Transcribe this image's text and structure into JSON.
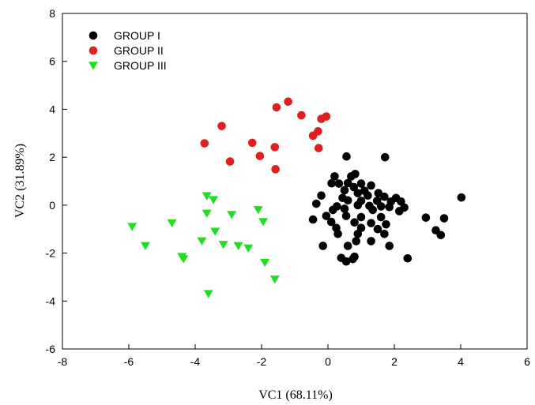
{
  "chart_data": {
    "type": "scatter",
    "xlabel": "VC1 (68.11%)",
    "ylabel": "VC2 (31.89%)",
    "xlim": [
      -8,
      6
    ],
    "ylim": [
      -6,
      8
    ],
    "xticks": [
      "-8",
      "-6",
      "-4",
      "-2",
      "0",
      "2",
      "4",
      "6"
    ],
    "yticks": [
      "-6",
      "-4",
      "-2",
      "0",
      "2",
      "4",
      "6",
      "8"
    ],
    "grid": false,
    "legend": "top-left",
    "series": [
      {
        "name": "GROUP I",
        "marker": "circle",
        "color": "#000000",
        "points": [
          [
            0.56,
            2.03
          ],
          [
            1.72,
            2.0
          ],
          [
            0.2,
            1.2
          ],
          [
            0.82,
            1.3
          ],
          [
            0.7,
            1.2
          ],
          [
            0.11,
            0.91
          ],
          [
            0.33,
            0.9
          ],
          [
            0.6,
            0.92
          ],
          [
            1.0,
            0.9
          ],
          [
            1.3,
            0.82
          ],
          [
            0.78,
            0.75
          ],
          [
            0.5,
            0.62
          ],
          [
            1.1,
            0.6
          ],
          [
            1.52,
            0.5
          ],
          [
            0.9,
            0.5
          ],
          [
            1.2,
            0.4
          ],
          [
            -0.2,
            0.4
          ],
          [
            0.44,
            0.3
          ],
          [
            1.7,
            0.35
          ],
          [
            2.05,
            0.3
          ],
          [
            4.02,
            0.32
          ],
          [
            0.6,
            0.2
          ],
          [
            1.0,
            0.18
          ],
          [
            1.48,
            0.18
          ],
          [
            1.9,
            0.15
          ],
          [
            2.2,
            0.15
          ],
          [
            -0.35,
            0.06
          ],
          [
            0.27,
            -0.05
          ],
          [
            0.9,
            0.0
          ],
          [
            1.25,
            -0.03
          ],
          [
            1.6,
            -0.05
          ],
          [
            1.85,
            -0.08
          ],
          [
            2.3,
            -0.1
          ],
          [
            0.5,
            -0.15
          ],
          [
            0.15,
            -0.2
          ],
          [
            1.35,
            -0.2
          ],
          [
            2.15,
            -0.25
          ],
          [
            -0.05,
            -0.45
          ],
          [
            0.55,
            -0.45
          ],
          [
            1.0,
            -0.5
          ],
          [
            1.6,
            -0.5
          ],
          [
            2.95,
            -0.52
          ],
          [
            3.5,
            -0.55
          ],
          [
            -0.45,
            -0.6
          ],
          [
            0.1,
            -0.7
          ],
          [
            0.8,
            -0.72
          ],
          [
            1.3,
            -0.75
          ],
          [
            1.75,
            -0.8
          ],
          [
            0.25,
            -0.95
          ],
          [
            1.0,
            -0.95
          ],
          [
            1.5,
            -1.0
          ],
          [
            3.25,
            -1.05
          ],
          [
            3.4,
            -1.25
          ],
          [
            0.3,
            -1.2
          ],
          [
            0.9,
            -1.2
          ],
          [
            1.7,
            -1.2
          ],
          [
            1.3,
            -1.5
          ],
          [
            0.85,
            -1.5
          ],
          [
            -0.15,
            -1.7
          ],
          [
            0.6,
            -1.7
          ],
          [
            1.85,
            -1.7
          ],
          [
            0.4,
            -2.2
          ],
          [
            0.75,
            -2.25
          ],
          [
            0.8,
            -2.15
          ],
          [
            0.55,
            -2.35
          ],
          [
            2.4,
            -2.22
          ]
        ]
      },
      {
        "name": "GROUP II",
        "marker": "circle",
        "color": "#e02020",
        "points": [
          [
            -1.2,
            4.32
          ],
          [
            -1.55,
            4.08
          ],
          [
            -0.8,
            3.75
          ],
          [
            -0.05,
            3.7
          ],
          [
            -0.2,
            3.6
          ],
          [
            -3.2,
            3.3
          ],
          [
            -0.3,
            3.08
          ],
          [
            -0.45,
            2.9
          ],
          [
            -3.72,
            2.58
          ],
          [
            -2.28,
            2.6
          ],
          [
            -1.6,
            2.42
          ],
          [
            -0.28,
            2.38
          ],
          [
            -2.05,
            2.05
          ],
          [
            -2.95,
            1.82
          ],
          [
            -1.58,
            1.5
          ]
        ]
      },
      {
        "name": "GROUP III",
        "marker": "triangle-down",
        "color": "#22dd22",
        "points": [
          [
            -3.65,
            0.38
          ],
          [
            -3.45,
            0.22
          ],
          [
            -2.1,
            -0.2
          ],
          [
            -3.65,
            -0.35
          ],
          [
            -2.9,
            -0.4
          ],
          [
            -1.95,
            -0.7
          ],
          [
            -4.7,
            -0.75
          ],
          [
            -5.9,
            -0.9
          ],
          [
            -3.4,
            -1.1
          ],
          [
            -3.8,
            -1.5
          ],
          [
            -3.15,
            -1.65
          ],
          [
            -5.5,
            -1.7
          ],
          [
            -2.7,
            -1.7
          ],
          [
            -2.4,
            -1.8
          ],
          [
            -4.4,
            -2.15
          ],
          [
            -4.35,
            -2.25
          ],
          [
            -1.9,
            -2.4
          ],
          [
            -1.6,
            -3.1
          ],
          [
            -3.6,
            -3.7
          ]
        ]
      }
    ]
  }
}
